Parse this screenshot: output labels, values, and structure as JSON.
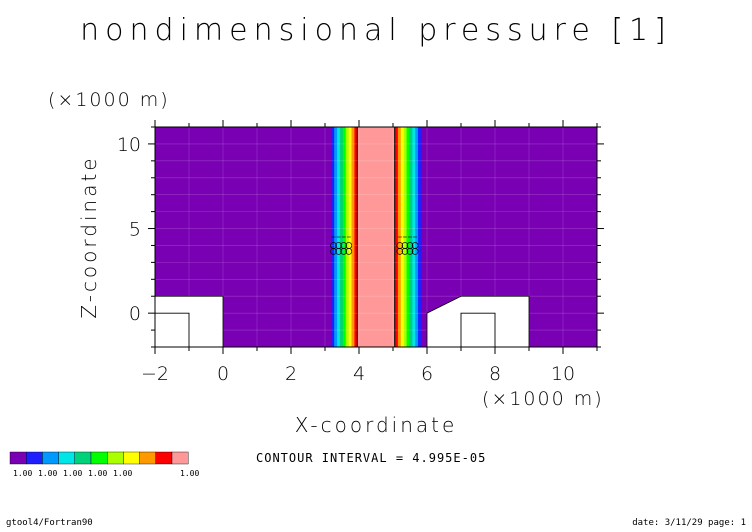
{
  "chart_data": {
    "type": "heatmap",
    "title": "nondimensional pressure [1]",
    "xlabel": "X-coordinate",
    "ylabel": "Z-coordinate",
    "x_unit": "(×1000 m)",
    "y_unit": "(×1000 m)",
    "xlim": [
      -2,
      11
    ],
    "ylim": [
      -2,
      11
    ],
    "x_ticks": [
      -2,
      0,
      2,
      4,
      6,
      8,
      10
    ],
    "y_ticks": [
      0,
      5,
      10
    ],
    "contour_interval_text": "CONTOUR INTERVAL = 4.995E-05",
    "colorbar": {
      "colors": [
        "#7a00b4",
        "#1e1eff",
        "#0099ff",
        "#00e5e5",
        "#00d27a",
        "#00ff00",
        "#aaff00",
        "#ffff00",
        "#ff9900",
        "#ff0000",
        "#ff9999"
      ],
      "tick_labels": [
        "1.00",
        "1.00",
        "1.00",
        "1.00",
        "1.00",
        "1.00"
      ]
    },
    "background_color": "#7a00b4",
    "high_band_color": "#ff9999",
    "high_band_x": [
      3.95,
      5.05
    ],
    "left_gradient_x": [
      3.1,
      3.95
    ],
    "right_gradient_x": [
      5.05,
      5.9
    ],
    "terrain": [
      {
        "name": "left-mountain",
        "points": [
          [
            -2,
            -2
          ],
          [
            -2,
            1
          ],
          [
            0,
            1
          ],
          [
            0,
            -2
          ]
        ]
      },
      {
        "name": "right-mountain",
        "points": [
          [
            6,
            -2
          ],
          [
            6,
            0
          ],
          [
            7,
            1
          ],
          [
            9,
            1
          ],
          [
            9,
            -2
          ]
        ]
      }
    ],
    "inner_boxes": [
      {
        "x0": -2,
        "x1": -1,
        "y0": -2,
        "y1": 0
      },
      {
        "x0": 7,
        "x1": 8,
        "y0": -2,
        "y1": 0
      }
    ],
    "symbol_rows_y": [
      3.65,
      4.0
    ],
    "symbol_x_groups": [
      [
        3.25,
        3.4,
        3.55,
        3.7
      ],
      [
        5.2,
        5.35,
        5.5,
        5.65
      ]
    ]
  },
  "footer": {
    "left": "gtool4/Fortran90",
    "right": "date: 3/11/29 page: 1"
  }
}
